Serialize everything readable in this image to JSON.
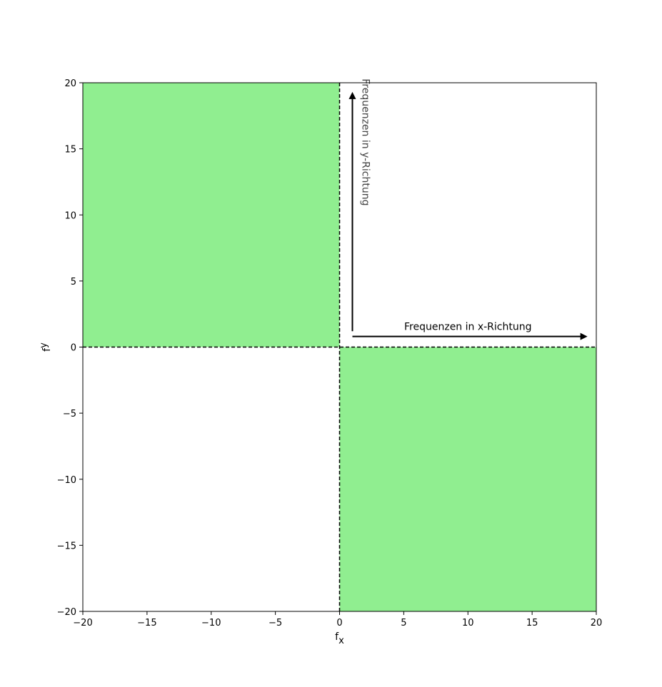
{
  "chart_data": {
    "type": "area",
    "title": "",
    "xlabel": {
      "main": "f",
      "sub": "x"
    },
    "ylabel": {
      "main": "f",
      "sub": "y"
    },
    "xlim": [
      -20,
      20
    ],
    "ylim": [
      -20,
      20
    ],
    "xticks": [
      -20,
      -15,
      -10,
      -5,
      0,
      5,
      10,
      15,
      20
    ],
    "yticks": [
      -20,
      -15,
      -10,
      -5,
      0,
      5,
      10,
      15,
      20
    ],
    "tick_labels": [
      "−20",
      "−15",
      "−10",
      "−5",
      "0",
      "5",
      "10",
      "15",
      "20"
    ],
    "grid": false,
    "regions": [
      {
        "x": [
          -20,
          0
        ],
        "y": [
          0,
          20
        ],
        "color": "#90ee90"
      },
      {
        "x": [
          0,
          20
        ],
        "y": [
          -20,
          0
        ],
        "color": "#90ee90"
      }
    ],
    "reference_lines": [
      {
        "orientation": "vertical",
        "value": 0,
        "style": "dashed",
        "color": "#000000"
      },
      {
        "orientation": "horizontal",
        "value": 0,
        "style": "dashed",
        "color": "#000000"
      }
    ],
    "annotations": [
      {
        "type": "arrow",
        "from": [
          1,
          1.2
        ],
        "to": [
          1,
          19.2
        ],
        "label": "Frequenzen in y-Richtung",
        "label_pos": [
          2,
          15.5
        ],
        "label_rotation": 90
      },
      {
        "type": "arrow",
        "from": [
          1,
          0.8
        ],
        "to": [
          19.2,
          0.8
        ],
        "label": "Frequenzen in x-Richtung",
        "label_pos": [
          10,
          1.3
        ],
        "label_rotation": 0
      }
    ]
  },
  "colors": {
    "fill": "#90ee90",
    "axes": "#000000",
    "background": "#ffffff"
  }
}
